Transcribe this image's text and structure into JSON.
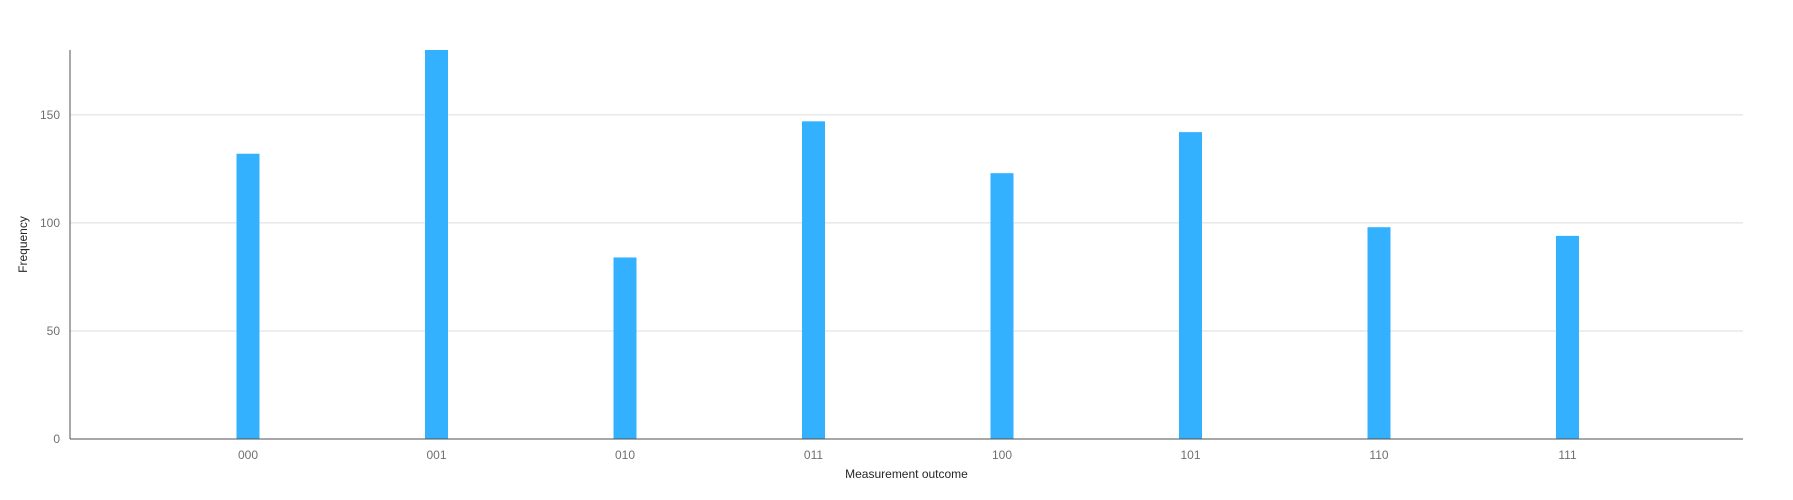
{
  "chart_data": {
    "type": "bar",
    "categories": [
      "000",
      "001",
      "010",
      "011",
      "100",
      "101",
      "110",
      "111"
    ],
    "values": [
      132,
      180,
      84,
      147,
      123,
      142,
      98,
      94
    ],
    "xlabel": "Measurement outcome",
    "ylabel": "Frequency",
    "ylim": [
      0,
      180
    ],
    "yticks": [
      0,
      50,
      100,
      150
    ],
    "grid": true,
    "bar_color": "#33b1ff",
    "legend": "none"
  }
}
